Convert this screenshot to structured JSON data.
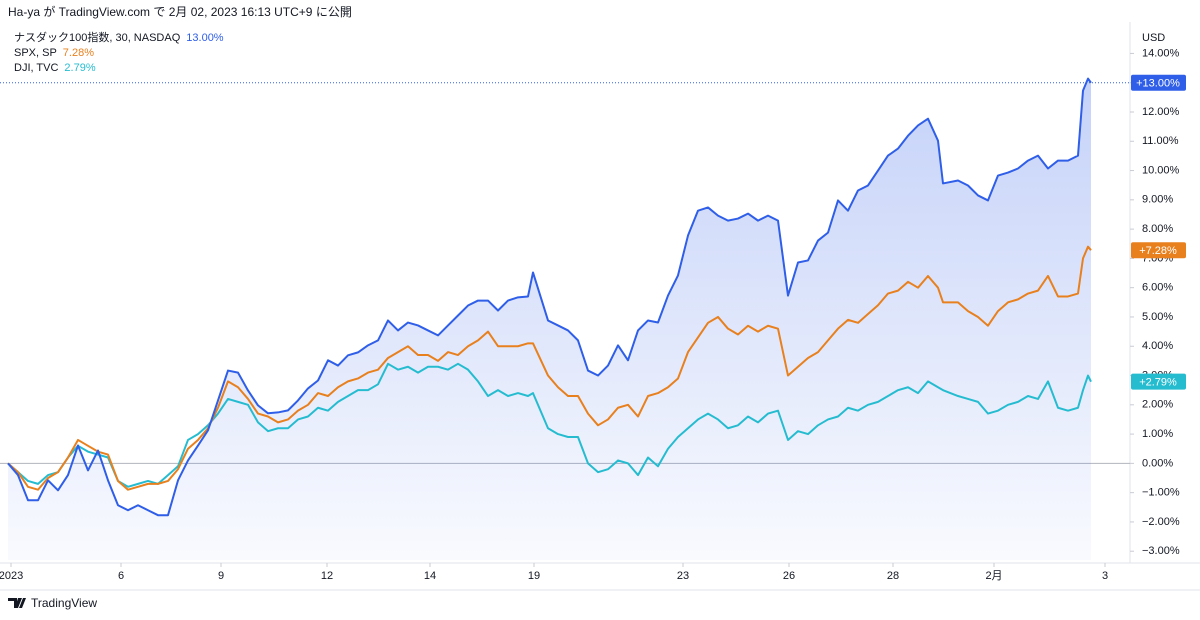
{
  "header": "Ha-ya が TradingView.com で 2月 02, 2023 16:13 UTC+9 に公開",
  "footer": "TradingView",
  "chart_data": {
    "type": "line",
    "y_unit": "USD",
    "x": [
      0,
      1,
      2,
      3,
      4,
      5,
      6,
      7,
      8,
      9,
      10,
      11,
      12,
      13,
      14,
      15,
      16,
      17,
      18,
      19,
      20,
      21,
      22,
      23,
      24,
      25,
      26,
      27,
      28,
      29,
      30,
      31,
      32,
      33,
      34,
      35,
      36,
      37,
      38,
      39,
      40,
      41,
      42,
      43,
      44,
      45,
      46,
      47,
      48,
      49,
      50,
      51,
      52,
      52.5,
      54,
      55,
      56,
      57,
      58,
      59,
      60,
      61,
      62,
      63,
      64,
      65,
      66,
      67,
      68,
      69,
      70,
      71,
      72,
      73,
      74,
      75,
      76,
      77,
      78,
      79,
      80,
      81,
      82,
      83,
      84,
      85,
      86,
      87,
      88,
      89,
      90,
      91,
      92,
      93,
      93.5,
      95,
      96,
      97,
      98,
      99,
      100,
      101,
      102,
      103,
      104,
      105,
      106,
      107,
      107.5,
      108,
      108.3
    ],
    "xlim": [
      0,
      112
    ],
    "xticks": [
      {
        "value": 0.3,
        "label": "2023"
      },
      {
        "value": 11.3,
        "label": "6"
      },
      {
        "value": 21.3,
        "label": "9"
      },
      {
        "value": 31.9,
        "label": "12"
      },
      {
        "value": 42.2,
        "label": "14"
      },
      {
        "value": 52.6,
        "label": "19"
      },
      {
        "value": 67.5,
        "label": "23"
      },
      {
        "value": 78.1,
        "label": "26"
      },
      {
        "value": 88.5,
        "label": "28"
      },
      {
        "value": 98.6,
        "label": "2月"
      },
      {
        "value": 109.7,
        "label": "3"
      }
    ],
    "ylim": [
      -3.3,
      14.8
    ],
    "yticks": [
      {
        "value": 14,
        "label": "14.00%"
      },
      {
        "value": 13,
        "label": "13.00%"
      },
      {
        "value": 12,
        "label": "12.00%"
      },
      {
        "value": 11,
        "label": "11.00%"
      },
      {
        "value": 10,
        "label": "10.00%"
      },
      {
        "value": 9,
        "label": "9.00%"
      },
      {
        "value": 8,
        "label": "8.00%"
      },
      {
        "value": 7,
        "label": "7.00%"
      },
      {
        "value": 6,
        "label": "6.00%"
      },
      {
        "value": 5,
        "label": "5.00%"
      },
      {
        "value": 4,
        "label": "4.00%"
      },
      {
        "value": 3,
        "label": "3.00%"
      },
      {
        "value": 2,
        "label": "2.00%"
      },
      {
        "value": 1,
        "label": "1.00%"
      },
      {
        "value": 0,
        "label": "0.00%"
      },
      {
        "value": -1,
        "label": "−1.00%"
      },
      {
        "value": -2,
        "label": "−2.00%"
      },
      {
        "value": -3,
        "label": "−3.00%"
      }
    ],
    "series": [
      {
        "name": "ナスダック100指数, 30, NASDAQ",
        "color": "#2f5ee8",
        "last_value_label": "13.00%",
        "tag_label": "+13.00%",
        "area": true,
        "values": [
          0,
          -0.4,
          -1.26,
          -1.26,
          -0.58,
          -0.92,
          -0.4,
          0.61,
          -0.24,
          0.44,
          -0.58,
          -1.43,
          -1.6,
          -1.43,
          -1.6,
          -1.77,
          -1.77,
          -0.58,
          0.1,
          0.61,
          1.13,
          2.15,
          3.17,
          3.1,
          2.49,
          1.98,
          1.71,
          1.74,
          1.81,
          2.15,
          2.56,
          2.83,
          3.52,
          3.34,
          3.69,
          3.79,
          4.03,
          4.2,
          4.88,
          4.54,
          4.81,
          4.71,
          4.54,
          4.37,
          4.71,
          5.05,
          5.39,
          5.56,
          5.56,
          5.22,
          5.56,
          5.67,
          5.7,
          6.52,
          4.88,
          4.71,
          4.54,
          4.2,
          3.17,
          3.0,
          3.34,
          4.03,
          3.52,
          4.54,
          4.88,
          4.81,
          5.73,
          6.42,
          7.78,
          8.63,
          8.74,
          8.46,
          8.29,
          8.36,
          8.53,
          8.29,
          8.46,
          8.29,
          5.73,
          6.86,
          6.93,
          7.61,
          7.88,
          8.98,
          8.63,
          9.32,
          9.49,
          10.0,
          10.51,
          10.75,
          11.19,
          11.54,
          11.77,
          11.02,
          9.56,
          9.66,
          9.49,
          9.15,
          8.98,
          9.83,
          9.93,
          10.07,
          10.34,
          10.51,
          10.07,
          10.34,
          10.34,
          10.51,
          12.73,
          13.14,
          13.0
        ]
      },
      {
        "name": "SPX, SP",
        "color": "#e8801e",
        "last_value_label": "7.28%",
        "tag_label": "+7.28%",
        "values": [
          0,
          -0.3,
          -0.8,
          -0.9,
          -0.5,
          -0.3,
          0.2,
          0.8,
          0.6,
          0.4,
          0.3,
          -0.6,
          -0.9,
          -0.8,
          -0.7,
          -0.7,
          -0.6,
          -0.2,
          0.5,
          0.8,
          1.2,
          1.9,
          2.8,
          2.6,
          2.2,
          1.7,
          1.6,
          1.4,
          1.5,
          1.8,
          2.0,
          2.4,
          2.3,
          2.6,
          2.8,
          2.9,
          3.1,
          3.2,
          3.6,
          3.8,
          4.0,
          3.7,
          3.7,
          3.5,
          3.8,
          3.7,
          4.0,
          4.2,
          4.5,
          4.0,
          4.0,
          4.0,
          4.1,
          4.1,
          3.0,
          2.6,
          2.3,
          2.3,
          1.7,
          1.3,
          1.5,
          1.9,
          2.0,
          1.6,
          2.3,
          2.4,
          2.6,
          2.9,
          3.8,
          4.3,
          4.8,
          5.0,
          4.6,
          4.4,
          4.7,
          4.5,
          4.7,
          4.6,
          3.0,
          3.3,
          3.6,
          3.8,
          4.2,
          4.6,
          4.9,
          4.8,
          5.1,
          5.4,
          5.8,
          5.9,
          6.2,
          6.0,
          6.4,
          6.0,
          5.5,
          5.5,
          5.2,
          5.0,
          4.7,
          5.2,
          5.5,
          5.6,
          5.8,
          5.9,
          6.4,
          5.7,
          5.7,
          5.8,
          7.0,
          7.4,
          7.28
        ]
      },
      {
        "name": "DJI, TVC",
        "color": "#26bcd0",
        "last_value_label": "2.79%",
        "tag_label": "+2.79%",
        "values": [
          0,
          -0.3,
          -0.6,
          -0.7,
          -0.4,
          -0.3,
          0.2,
          0.6,
          0.4,
          0.3,
          0.2,
          -0.6,
          -0.8,
          -0.7,
          -0.6,
          -0.7,
          -0.4,
          -0.1,
          0.8,
          1.0,
          1.3,
          1.7,
          2.2,
          2.1,
          2.0,
          1.4,
          1.1,
          1.2,
          1.2,
          1.5,
          1.6,
          1.9,
          1.8,
          2.1,
          2.3,
          2.5,
          2.5,
          2.7,
          3.4,
          3.2,
          3.3,
          3.1,
          3.3,
          3.3,
          3.2,
          3.4,
          3.2,
          2.8,
          2.3,
          2.5,
          2.3,
          2.4,
          2.3,
          2.4,
          1.2,
          1.0,
          0.9,
          0.9,
          0.0,
          -0.3,
          -0.2,
          0.1,
          0.0,
          -0.4,
          0.2,
          -0.1,
          0.5,
          0.9,
          1.2,
          1.5,
          1.7,
          1.5,
          1.2,
          1.3,
          1.6,
          1.4,
          1.7,
          1.8,
          0.8,
          1.1,
          1.0,
          1.3,
          1.5,
          1.6,
          1.9,
          1.8,
          2.0,
          2.1,
          2.3,
          2.5,
          2.6,
          2.4,
          2.8,
          2.6,
          2.5,
          2.3,
          2.2,
          2.1,
          1.7,
          1.8,
          2.0,
          2.1,
          2.3,
          2.2,
          2.8,
          1.9,
          1.8,
          1.9,
          2.5,
          3.0,
          2.79
        ]
      }
    ]
  }
}
